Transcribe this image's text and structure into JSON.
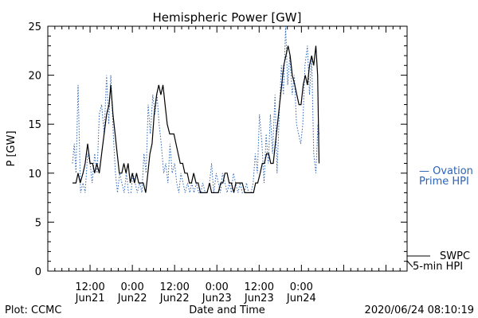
{
  "chart_data": {
    "type": "line",
    "title": "Hemispheric Power [GW]",
    "xlabel": "Date and Time",
    "ylabel": "P [GW]",
    "ylim": [
      0,
      25
    ],
    "xlim": [
      0,
      102
    ],
    "x_unit": "hours since 2020-06-21 00:00 UT",
    "yticks": [
      "0",
      "5",
      "10",
      "15",
      "20",
      "25"
    ],
    "xticks": [
      {
        "x": 12,
        "time": "12:00",
        "date": "Jun21"
      },
      {
        "x": 24,
        "time": "0:00",
        "date": "Jun22"
      },
      {
        "x": 36,
        "time": "12:00",
        "date": "Jun22"
      },
      {
        "x": 48,
        "time": "0:00",
        "date": "Jun23"
      },
      {
        "x": 60,
        "time": "12:00",
        "date": "Jun23"
      },
      {
        "x": 72,
        "time": "0:00",
        "date": "Jun24"
      }
    ],
    "grid": false,
    "series": [
      {
        "name": "SWPC 5-min HPI",
        "color": "#000000",
        "style": "solid",
        "label_lines": [
          "SWPC",
          "5-min HPI"
        ],
        "points": [
          [
            7,
            9
          ],
          [
            8,
            9
          ],
          [
            8.6,
            10
          ],
          [
            9.2,
            9
          ],
          [
            10,
            10
          ],
          [
            10.6,
            11
          ],
          [
            11.3,
            13
          ],
          [
            12,
            11
          ],
          [
            12.7,
            11
          ],
          [
            13.3,
            10
          ],
          [
            13.9,
            11
          ],
          [
            14.6,
            10
          ],
          [
            15.3,
            12
          ],
          [
            16,
            14
          ],
          [
            16.7,
            16
          ],
          [
            17.4,
            17
          ],
          [
            17.9,
            19
          ],
          [
            18.5,
            16
          ],
          [
            19.1,
            14
          ],
          [
            19.7,
            12
          ],
          [
            20.3,
            10
          ],
          [
            21,
            10
          ],
          [
            21.6,
            11
          ],
          [
            22.2,
            10
          ],
          [
            22.8,
            11
          ],
          [
            23.4,
            9
          ],
          [
            24,
            10
          ],
          [
            24.6,
            9
          ],
          [
            25.2,
            10
          ],
          [
            25.8,
            9
          ],
          [
            26.5,
            9
          ],
          [
            27.1,
            9
          ],
          [
            27.8,
            8
          ],
          [
            28.4,
            10
          ],
          [
            29,
            12
          ],
          [
            29.6,
            13
          ],
          [
            30.2,
            16
          ],
          [
            30.9,
            18
          ],
          [
            31.5,
            19
          ],
          [
            32.1,
            18
          ],
          [
            32.7,
            19
          ],
          [
            33.3,
            17
          ],
          [
            33.9,
            15
          ],
          [
            34.6,
            14
          ],
          [
            35.2,
            14
          ],
          [
            35.8,
            14
          ],
          [
            36.4,
            13
          ],
          [
            37,
            12
          ],
          [
            37.6,
            11
          ],
          [
            38.3,
            11
          ],
          [
            38.9,
            10
          ],
          [
            39.6,
            10
          ],
          [
            40.2,
            9
          ],
          [
            40.8,
            9
          ],
          [
            41.4,
            10
          ],
          [
            42.1,
            9
          ],
          [
            42.7,
            9
          ],
          [
            43.3,
            8
          ],
          [
            44,
            8
          ],
          [
            44.6,
            8
          ],
          [
            45.2,
            8
          ],
          [
            45.9,
            9
          ],
          [
            46.5,
            8
          ],
          [
            47.2,
            8
          ],
          [
            47.8,
            8
          ],
          [
            48.4,
            8
          ],
          [
            49.1,
            9
          ],
          [
            49.7,
            9
          ],
          [
            50.3,
            10
          ],
          [
            50.9,
            10
          ],
          [
            51.5,
            9
          ],
          [
            52.1,
            9
          ],
          [
            52.8,
            8
          ],
          [
            53.4,
            9
          ],
          [
            54,
            9
          ],
          [
            54.6,
            9
          ],
          [
            55.2,
            9
          ],
          [
            55.9,
            8
          ],
          [
            56.5,
            8
          ],
          [
            57.2,
            8
          ],
          [
            57.8,
            8
          ],
          [
            58.4,
            8
          ],
          [
            59,
            9
          ],
          [
            59.6,
            9
          ],
          [
            60.3,
            10
          ],
          [
            60.9,
            11
          ],
          [
            61.5,
            11
          ],
          [
            62.1,
            12
          ],
          [
            62.7,
            12
          ],
          [
            63.3,
            11
          ],
          [
            64,
            11
          ],
          [
            64.6,
            13
          ],
          [
            65.2,
            15
          ],
          [
            65.8,
            17
          ],
          [
            66.4,
            19
          ],
          [
            67,
            21
          ],
          [
            67.6,
            22
          ],
          [
            68.2,
            23
          ],
          [
            68.8,
            22
          ],
          [
            69.4,
            20
          ],
          [
            70.1,
            19
          ],
          [
            70.7,
            18
          ],
          [
            71.3,
            17
          ],
          [
            71.9,
            17
          ],
          [
            72.5,
            19
          ],
          [
            73.1,
            20
          ],
          [
            73.7,
            19
          ],
          [
            74.3,
            21
          ],
          [
            74.9,
            22
          ],
          [
            75.5,
            21
          ],
          [
            76.1,
            23
          ],
          [
            76.6,
            20
          ],
          [
            77,
            11
          ]
        ]
      },
      {
        "name": "Ovation Prime HPI",
        "color": "#2a64b8",
        "style": "dotted",
        "label_lines": [
          "— Ovation",
          "Prime HPI"
        ],
        "points": [
          [
            7,
            11
          ],
          [
            7.5,
            13
          ],
          [
            8,
            10
          ],
          [
            8.6,
            19
          ],
          [
            9.3,
            8
          ],
          [
            10,
            9
          ],
          [
            10.6,
            8
          ],
          [
            11.3,
            12
          ],
          [
            12,
            11
          ],
          [
            12.6,
            9
          ],
          [
            13.3,
            12
          ],
          [
            14,
            10
          ],
          [
            14.6,
            16
          ],
          [
            15.3,
            17
          ],
          [
            16,
            14
          ],
          [
            16.7,
            20
          ],
          [
            17.3,
            15
          ],
          [
            17.9,
            20
          ],
          [
            18.6,
            14
          ],
          [
            19.2,
            10
          ],
          [
            19.8,
            8
          ],
          [
            20.4,
            10
          ],
          [
            21,
            9
          ],
          [
            21.7,
            8
          ],
          [
            22.3,
            10
          ],
          [
            22.9,
            8
          ],
          [
            23.6,
            8
          ],
          [
            24.2,
            10
          ],
          [
            24.8,
            9
          ],
          [
            25.4,
            8
          ],
          [
            26.1,
            9
          ],
          [
            26.7,
            8
          ],
          [
            27.3,
            12
          ],
          [
            27.9,
            10
          ],
          [
            28.5,
            17
          ],
          [
            29.1,
            14
          ],
          [
            29.8,
            18
          ],
          [
            30.4,
            16
          ],
          [
            31,
            18
          ],
          [
            31.6,
            15
          ],
          [
            32.2,
            13
          ],
          [
            32.9,
            10
          ],
          [
            33.5,
            11
          ],
          [
            34.1,
            9
          ],
          [
            34.7,
            13
          ],
          [
            35.3,
            10
          ],
          [
            36,
            11
          ],
          [
            36.6,
            9
          ],
          [
            37.2,
            8
          ],
          [
            37.8,
            10
          ],
          [
            38.4,
            9
          ],
          [
            39,
            8
          ],
          [
            39.7,
            9
          ],
          [
            40.3,
            8
          ],
          [
            40.9,
            9
          ],
          [
            41.5,
            8
          ],
          [
            42.2,
            9
          ],
          [
            42.8,
            8
          ],
          [
            43.4,
            8
          ],
          [
            44,
            9
          ],
          [
            44.7,
            8
          ],
          [
            45.3,
            8
          ],
          [
            45.9,
            9
          ],
          [
            46.5,
            11
          ],
          [
            47.1,
            8
          ],
          [
            47.8,
            10
          ],
          [
            48.4,
            9
          ],
          [
            49,
            8
          ],
          [
            49.6,
            10
          ],
          [
            50.3,
            9
          ],
          [
            50.9,
            8
          ],
          [
            51.5,
            9
          ],
          [
            52.1,
            8
          ],
          [
            52.7,
            10
          ],
          [
            53.3,
            9
          ],
          [
            54,
            8
          ],
          [
            54.6,
            9
          ],
          [
            55.2,
            8
          ],
          [
            55.8,
            8
          ],
          [
            56.4,
            9
          ],
          [
            57,
            8
          ],
          [
            57.7,
            8
          ],
          [
            58.3,
            9
          ],
          [
            58.9,
            12
          ],
          [
            59.5,
            10
          ],
          [
            60.1,
            16
          ],
          [
            60.8,
            13
          ],
          [
            61.4,
            9
          ],
          [
            62,
            14
          ],
          [
            62.6,
            11
          ],
          [
            63.2,
            16
          ],
          [
            63.8,
            12
          ],
          [
            64.5,
            18
          ],
          [
            65.1,
            10
          ],
          [
            65.7,
            16
          ],
          [
            66.3,
            21
          ],
          [
            66.9,
            18
          ],
          [
            67.5,
            25
          ],
          [
            68.1,
            19
          ],
          [
            68.7,
            22
          ],
          [
            69.4,
            18
          ],
          [
            70,
            20
          ],
          [
            70.6,
            15
          ],
          [
            71.2,
            14
          ],
          [
            71.8,
            13
          ],
          [
            72.4,
            15
          ],
          [
            73,
            21
          ],
          [
            73.7,
            23
          ],
          [
            74.3,
            18
          ],
          [
            74.9,
            22
          ],
          [
            75.5,
            12
          ],
          [
            76.1,
            10
          ],
          [
            76.7,
            15
          ],
          [
            77,
            14
          ]
        ]
      }
    ]
  },
  "footer": {
    "left": "Plot: CCMC",
    "right": "2020/06/24 08:10:19"
  }
}
